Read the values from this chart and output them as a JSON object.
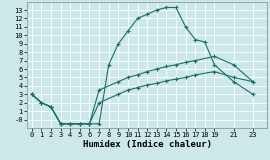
{
  "xlabel": "Humidex (Indice chaleur)",
  "bg_color": "#cce8e8",
  "line_color": "#1a6e6e",
  "line1_x": [
    0,
    1,
    2,
    3,
    4,
    5,
    6,
    7,
    8,
    9,
    10,
    11,
    12,
    13,
    14,
    15,
    16,
    17,
    18,
    19,
    21,
    23
  ],
  "line1_y": [
    3,
    2,
    1.5,
    -0.5,
    -0.5,
    -0.5,
    -0.5,
    -0.5,
    6.5,
    9,
    10.5,
    12,
    12.5,
    13,
    13.3,
    13.3,
    11,
    9.5,
    9.2,
    6.5,
    4.5,
    3
  ],
  "line2_x": [
    0,
    1,
    2,
    3,
    4,
    5,
    6,
    7,
    9,
    10,
    11,
    12,
    13,
    14,
    15,
    16,
    17,
    19,
    21,
    23
  ],
  "line2_y": [
    3,
    2,
    1.5,
    -0.5,
    -0.5,
    -0.5,
    -0.5,
    3.5,
    4.5,
    5.0,
    5.3,
    5.7,
    6.0,
    6.3,
    6.5,
    6.8,
    7.0,
    7.5,
    6.5,
    4.5
  ],
  "line3_x": [
    0,
    1,
    2,
    3,
    4,
    5,
    6,
    7,
    9,
    10,
    11,
    12,
    13,
    14,
    15,
    16,
    17,
    19,
    21,
    23
  ],
  "line3_y": [
    3,
    2,
    1.5,
    -0.5,
    -0.5,
    -0.5,
    -0.5,
    2.0,
    3.0,
    3.5,
    3.8,
    4.1,
    4.3,
    4.6,
    4.8,
    5.0,
    5.3,
    5.7,
    5.0,
    4.5
  ],
  "xlim": [
    -0.5,
    24.5
  ],
  "ylim": [
    -1.0,
    14.0
  ],
  "xticks": [
    0,
    1,
    2,
    3,
    4,
    5,
    6,
    7,
    8,
    9,
    10,
    11,
    12,
    13,
    14,
    15,
    16,
    17,
    18,
    19,
    21,
    23
  ],
  "yticks": [
    0,
    1,
    2,
    3,
    4,
    5,
    6,
    7,
    8,
    9,
    10,
    11,
    12,
    13
  ],
  "tick_fontsize": 5.0,
  "label_fontsize": 6.5
}
